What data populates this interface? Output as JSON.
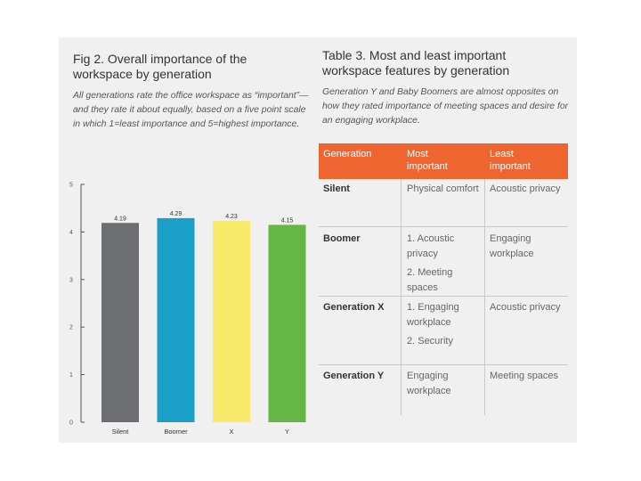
{
  "figure": {
    "title": "Fig 2. Overall importance of the workspace by generation",
    "description": "All generations rate the office workspace as “important”—and they rate it about equally, based on a five point scale in which 1=least importance and 5=highest importance."
  },
  "chart_data": {
    "type": "bar",
    "title": "Fig 2. Overall importance of the workspace by generation",
    "categories": [
      "Silent",
      "Boomer",
      "X",
      "Y"
    ],
    "values": [
      4.19,
      4.29,
      4.23,
      4.15
    ],
    "value_labels": [
      "4.19",
      "4.29",
      "4.23",
      "4.15"
    ],
    "colors": [
      "#6d6e71",
      "#1aa0c8",
      "#f7e96a",
      "#66b646"
    ],
    "ylim": [
      0,
      5
    ],
    "yticks": [
      0,
      1,
      2,
      3,
      4,
      5
    ],
    "xlabel": "",
    "ylabel": ""
  },
  "table": {
    "title": "Table 3. Most and least important workspace features by generation",
    "description": "Generation Y and Baby Boomers are almost opposites on how they rated importance of meeting spaces and desire for an engaging workplace.",
    "headers": [
      "Generation",
      "Most important",
      "Least important"
    ],
    "header_color": "#ee6530",
    "rows": [
      {
        "generation": "Silent",
        "most": [
          "Physical comfort"
        ],
        "least": "Acoustic privacy"
      },
      {
        "generation": "Boomer",
        "most": [
          "1. Acoustic privacy",
          "2. Meeting spaces"
        ],
        "least": "Engaging workplace"
      },
      {
        "generation": "Generation X",
        "most": [
          "1. Engaging workplace",
          "2. Security"
        ],
        "least": "Acoustic privacy"
      },
      {
        "generation": "Generation Y",
        "most": [
          "Engaging workplace"
        ],
        "least": "Meeting spaces"
      }
    ]
  }
}
